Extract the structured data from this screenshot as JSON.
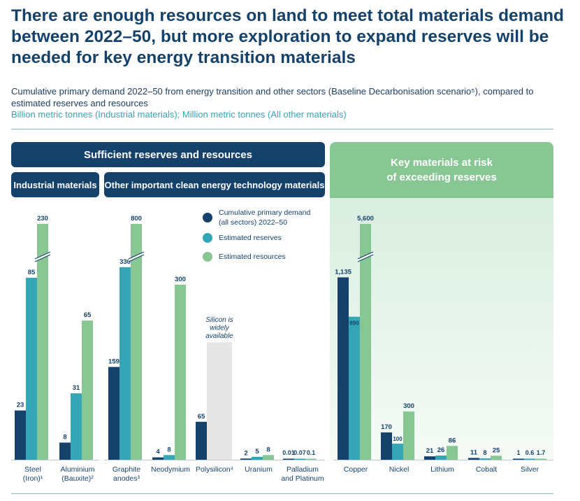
{
  "title": "There are enough resources on land to meet total materials demand between 2022–50, but more exploration to expand reserves will be needed for key energy transition materials",
  "subtitle_line1": "Cumulative primary demand 2022–50 from energy transition and other sectors (Baseline Decarbonisation scenario⁵), compared to estimated reserves and resources",
  "subtitle_units": "Billion metric tonnes (Industrial materials); Million metric tonnes (All other materials)",
  "headers": {
    "sufficient": "Sufficient reserves and resources",
    "industrial": "Industrial materials",
    "other": "Other important clean energy technology materials",
    "risk_line1": "Key materials at risk",
    "risk_line2": "of exceeding reserves"
  },
  "annotation": [
    "Silicon is",
    "widely",
    "available"
  ],
  "colors": {
    "demand": "#15426b",
    "reserves": "#35a6b5",
    "resources": "#88c694",
    "silicon_box": "#e6e6e6"
  },
  "chart_data": {
    "type": "bar",
    "legend": {
      "placement": "top-right",
      "entries": [
        "Cumulative primary demand (all sectors) 2022–50",
        "Estimated reserves",
        "Estimated resources"
      ],
      "lines": [
        [
          "Cumulative primary demand",
          "(all sectors) 2022–50"
        ],
        [
          "Estimated reserves"
        ],
        [
          "Estimated resources"
        ]
      ]
    },
    "axis_breaks": [
      "Steel (Iron)",
      "Graphite anodes",
      "Copper"
    ],
    "categories": [
      {
        "name": "Steel (Iron)¹",
        "label_lines": [
          "Steel",
          "(Iron)¹"
        ],
        "group": "Industrial materials",
        "demand": "23",
        "reserves": "85",
        "resources": "230"
      },
      {
        "name": "Aluminium (Bauxite)²",
        "label_lines": [
          "Aluminium",
          "(Bauxite)²"
        ],
        "group": "Industrial materials",
        "demand": "8",
        "reserves": "31",
        "resources": "65"
      },
      {
        "name": "Graphite anodes³",
        "label_lines": [
          "Graphite",
          "anodes³"
        ],
        "group": "Other important clean energy technology materials",
        "demand": "159",
        "reserves": "330",
        "resources": "800"
      },
      {
        "name": "Neodymium",
        "label_lines": [
          "Neodymium"
        ],
        "group": "Other important clean energy technology materials",
        "demand": "4",
        "reserves": "8",
        "resources": "300"
      },
      {
        "name": "Polysilicon⁴",
        "label_lines": [
          "Polysilicon⁴"
        ],
        "group": "Other important clean energy technology materials",
        "demand": "65",
        "reserves": "",
        "resources": ""
      },
      {
        "name": "Uranium",
        "label_lines": [
          "Uranium"
        ],
        "group": "Other important clean energy technology materials",
        "demand": "2",
        "reserves": "5",
        "resources": "8"
      },
      {
        "name": "Palladium and Platinum",
        "label_lines": [
          "Palladium",
          "and Platinum"
        ],
        "group": "Other important clean energy technology materials",
        "demand": "0.01",
        "reserves": "0.07",
        "resources": "0.1"
      },
      {
        "name": "Copper",
        "label_lines": [
          "Copper"
        ],
        "group": "Key materials at risk of exceeding reserves",
        "demand": "1,135",
        "reserves": "890",
        "resources": "5,600"
      },
      {
        "name": "Nickel",
        "label_lines": [
          "Nickel"
        ],
        "group": "Key materials at risk of exceeding reserves",
        "demand": "170",
        "reserves": "100",
        "resources": "300"
      },
      {
        "name": "Lithium",
        "label_lines": [
          "Lithium"
        ],
        "group": "Key materials at risk of exceeding reserves",
        "demand": "21",
        "reserves": "26",
        "resources": "86"
      },
      {
        "name": "Cobalt",
        "label_lines": [
          "Cobalt"
        ],
        "group": "Key materials at risk of exceeding reserves",
        "demand": "11",
        "reserves": "8",
        "resources": "25"
      },
      {
        "name": "Silver",
        "label_lines": [
          "Silver"
        ],
        "group": "Key materials at risk of exceeding reserves",
        "demand": "1",
        "reserves": "0.6",
        "resources": "1.7"
      }
    ]
  }
}
